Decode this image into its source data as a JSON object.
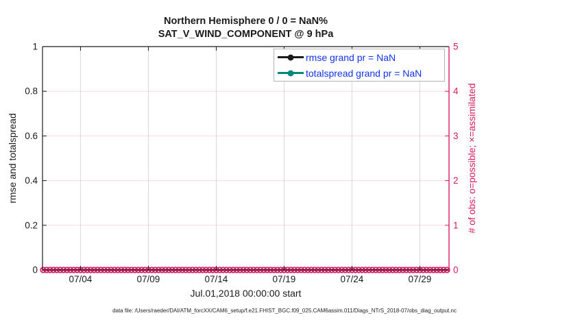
{
  "figure": {
    "title_line1": "Northern Hemisphere 0 / 0 = NaN%",
    "title_line2": "SAT_V_WIND_COMPONENT @ 9 hPa",
    "xlabel": "Jul.01,2018 00:00:00 start",
    "ylabel_left": "rmse and totalspread",
    "ylabel_right": "# of obs: o=possible; ×=assimilated",
    "footer": "data file: /Users/raeder/DAI/ATM_forcXX/CAM6_setup/f.e21.FHIST_BGC.f09_025.CAM6assim.011/Diags_NTrS_2018-07/obs_diag_output.nc"
  },
  "legend": {
    "items": [
      {
        "label": "rmse grand pr = NaN",
        "color": "#1a1a1a",
        "marker": "filled-circle"
      },
      {
        "label": "totalspread grand pr = NaN",
        "color": "#00897b",
        "marker": "filled-circle"
      }
    ],
    "text_color": "#1133ee"
  },
  "chart_data": {
    "type": "line",
    "title": "Northern Hemisphere 0 / 0 = NaN%",
    "subtitle": "SAT_V_WIND_COMPONENT @ 9 hPa",
    "xlabel": "Jul.01,2018 00:00:00 start",
    "x_axis": {
      "start_reference": "Jul.01,2018 00:00:00",
      "range_days": [
        0.2,
        30.15
      ],
      "tick_days": [
        3,
        8,
        13,
        18,
        23,
        28
      ],
      "tick_labels": [
        "07/04",
        "07/09",
        "07/14",
        "07/19",
        "07/24",
        "07/29"
      ],
      "color": "#1a1a1a"
    },
    "left_axis": {
      "label": "rmse and totalspread",
      "range": [
        0,
        1
      ],
      "ticks": [
        0,
        0.2,
        0.4,
        0.6,
        0.8,
        1
      ],
      "tick_labels": [
        "0",
        "0.2",
        "0.4",
        "0.6",
        "0.8",
        "1"
      ],
      "color": "#1a1a1a"
    },
    "right_axis": {
      "label": "# of obs: o=possible; ×=assimilated",
      "range": [
        0,
        5
      ],
      "ticks": [
        0,
        1,
        2,
        3,
        4,
        5
      ],
      "tick_labels": [
        "0",
        "1",
        "2",
        "3",
        "4",
        "5"
      ],
      "color": "#d81b60"
    },
    "grid": {
      "horizontal_color": "rgba(216,27,96,0.16)",
      "vertical_color": "rgba(130,130,130,0.30)"
    },
    "series": [
      {
        "name": "rmse",
        "legend": "rmse grand pr = NaN",
        "color": "#1a1a1a",
        "axis": "left",
        "values": "NaN (no line plotted)"
      },
      {
        "name": "totalspread",
        "legend": "totalspread grand pr = NaN",
        "color": "#00897b",
        "axis": "left",
        "values": "NaN (no line plotted)"
      },
      {
        "name": "obs_possible",
        "marker": "o",
        "color": "#d81b60",
        "axis": "right",
        "x_days": {
          "start": 0.25,
          "step": 0.25,
          "count": 120
        },
        "constant_value": 0
      },
      {
        "name": "obs_assimilated",
        "marker": "×",
        "color": "#d81b60",
        "axis": "right",
        "x_days": {
          "start": 0.25,
          "step": 0.25,
          "count": 120
        },
        "constant_value": 0
      }
    ]
  }
}
